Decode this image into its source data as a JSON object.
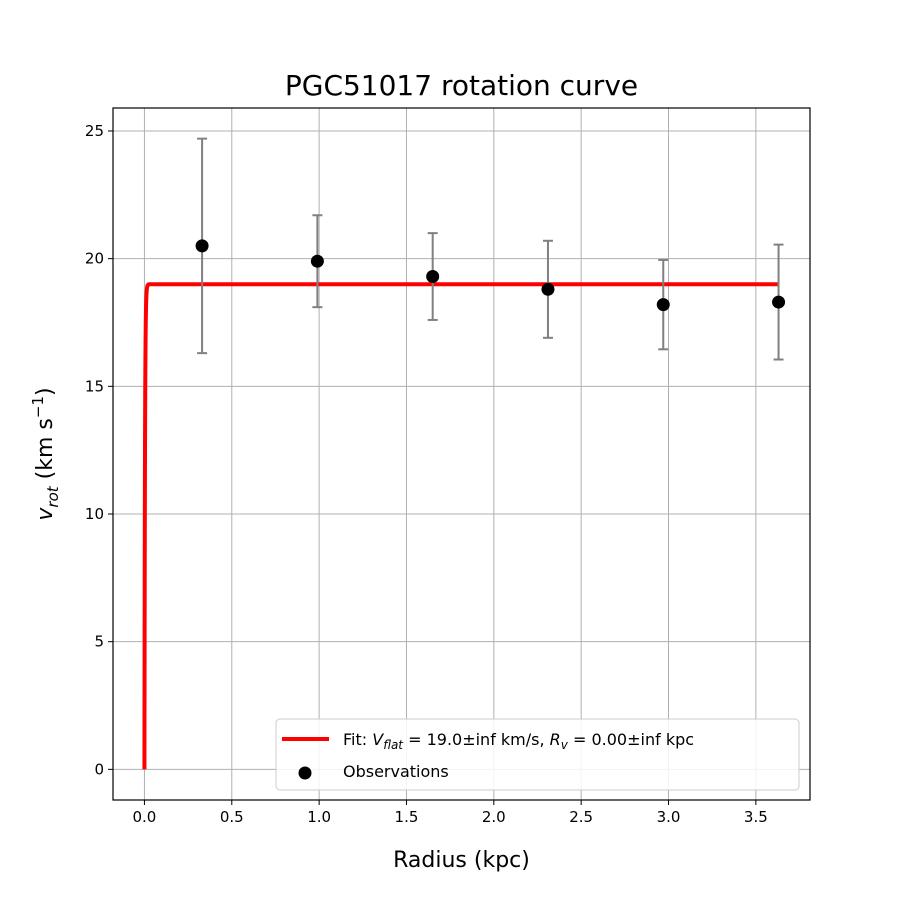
{
  "chart_data": {
    "type": "scatter",
    "title": "PGC51017 rotation curve",
    "xlabel": "Radius (kpc)",
    "ylabel": {
      "base": "v",
      "sub": "rot",
      "unit_prefix": " (km s",
      "unit_sup": "−1",
      "unit_suffix": ")"
    },
    "xlim": [
      -0.18,
      3.81
    ],
    "ylim": [
      -1.2,
      25.9
    ],
    "xticks": [
      0.0,
      0.5,
      1.0,
      1.5,
      2.0,
      2.5,
      3.0,
      3.5
    ],
    "xtick_labels": [
      "0.0",
      "0.5",
      "1.0",
      "1.5",
      "2.0",
      "2.5",
      "3.0",
      "3.5"
    ],
    "yticks": [
      0,
      5,
      10,
      15,
      20,
      25
    ],
    "ytick_labels": [
      "0",
      "5",
      "10",
      "15",
      "20",
      "25"
    ],
    "grid": true,
    "legend_position": "bottom-right",
    "series": [
      {
        "name": "Observations",
        "type": "scatter",
        "color": "#000000",
        "error_color": "#808080",
        "x": [
          0.33,
          0.99,
          1.65,
          2.31,
          2.97,
          3.63
        ],
        "y": [
          20.5,
          19.9,
          19.3,
          18.8,
          18.2,
          18.3
        ],
        "yerr": [
          4.2,
          1.8,
          1.7,
          1.9,
          1.75,
          2.25
        ]
      },
      {
        "name": "Fit",
        "type": "line",
        "color": "#ff0000",
        "v_flat": 19.0,
        "r_v": 0.003,
        "x_max": 3.63
      }
    ],
    "legend": [
      {
        "series": "Fit",
        "parts": [
          {
            "t": "Fit: "
          },
          {
            "t": "V",
            "italic": true
          },
          {
            "t": "flat",
            "italic": true,
            "sub": true
          },
          {
            "t": " = 19.0±inf km/s, "
          },
          {
            "t": "R",
            "italic": true
          },
          {
            "t": "v",
            "italic": true,
            "sub": true
          },
          {
            "t": " = 0.00±inf kpc"
          }
        ]
      },
      {
        "series": "Observations",
        "parts": [
          {
            "t": "Observations"
          }
        ]
      }
    ]
  }
}
